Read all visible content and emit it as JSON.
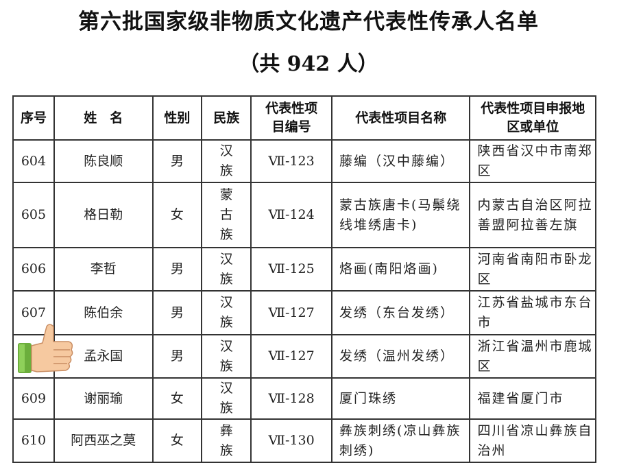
{
  "title": "第六批国家级非物质文化遗产代表性传承人名单",
  "subtitle": "（共 942 人）",
  "headers": [
    "序号",
    "姓　名",
    "性别",
    "民族",
    "代表性项目编号",
    "代表性项目名称",
    "代表性项目申报地区或单位"
  ],
  "rows": [
    {
      "no": "604",
      "name": "陈良顺",
      "gender": "男",
      "ethnic": "汉族",
      "code": "Ⅶ-123",
      "project": "藤编（汉中藤编）",
      "region": "陕西省汉中市南郑区"
    },
    {
      "no": "605",
      "name": "格日勒",
      "gender": "女",
      "ethnic": "蒙古族",
      "code": "Ⅶ-124",
      "project": "蒙古族唐卡(马鬃绕线堆绣唐卡)",
      "region": "内蒙古自治区阿拉善盟阿拉善左旗"
    },
    {
      "no": "606",
      "name": "李哲",
      "gender": "男",
      "ethnic": "汉族",
      "code": "Ⅶ-125",
      "project": "烙画(南阳烙画)",
      "region": "河南省南阳市卧龙区"
    },
    {
      "no": "607",
      "name": "陈伯余",
      "gender": "男",
      "ethnic": "汉族",
      "code": "Ⅶ-127",
      "project": "发绣（东台发绣）",
      "region": "江苏省盐城市东台市"
    },
    {
      "no": "",
      "name": "孟永国",
      "gender": "男",
      "ethnic": "汉族",
      "code": "Ⅶ-127",
      "project": "发绣（温州发绣）",
      "region": "浙江省温州市鹿城区"
    },
    {
      "no": "609",
      "name": "谢丽瑜",
      "gender": "女",
      "ethnic": "汉族",
      "code": "Ⅶ-128",
      "project": "厦门珠绣",
      "region": "福建省厦门市"
    },
    {
      "no": "610",
      "name": "阿西巫之莫",
      "gender": "女",
      "ethnic": "彝族",
      "code": "Ⅶ-130",
      "project": "彝族刺绣(凉山彝族刺绣)",
      "region": "四川省凉山彝族自治州"
    }
  ],
  "overlay_icon": "thumbs-up-icon"
}
